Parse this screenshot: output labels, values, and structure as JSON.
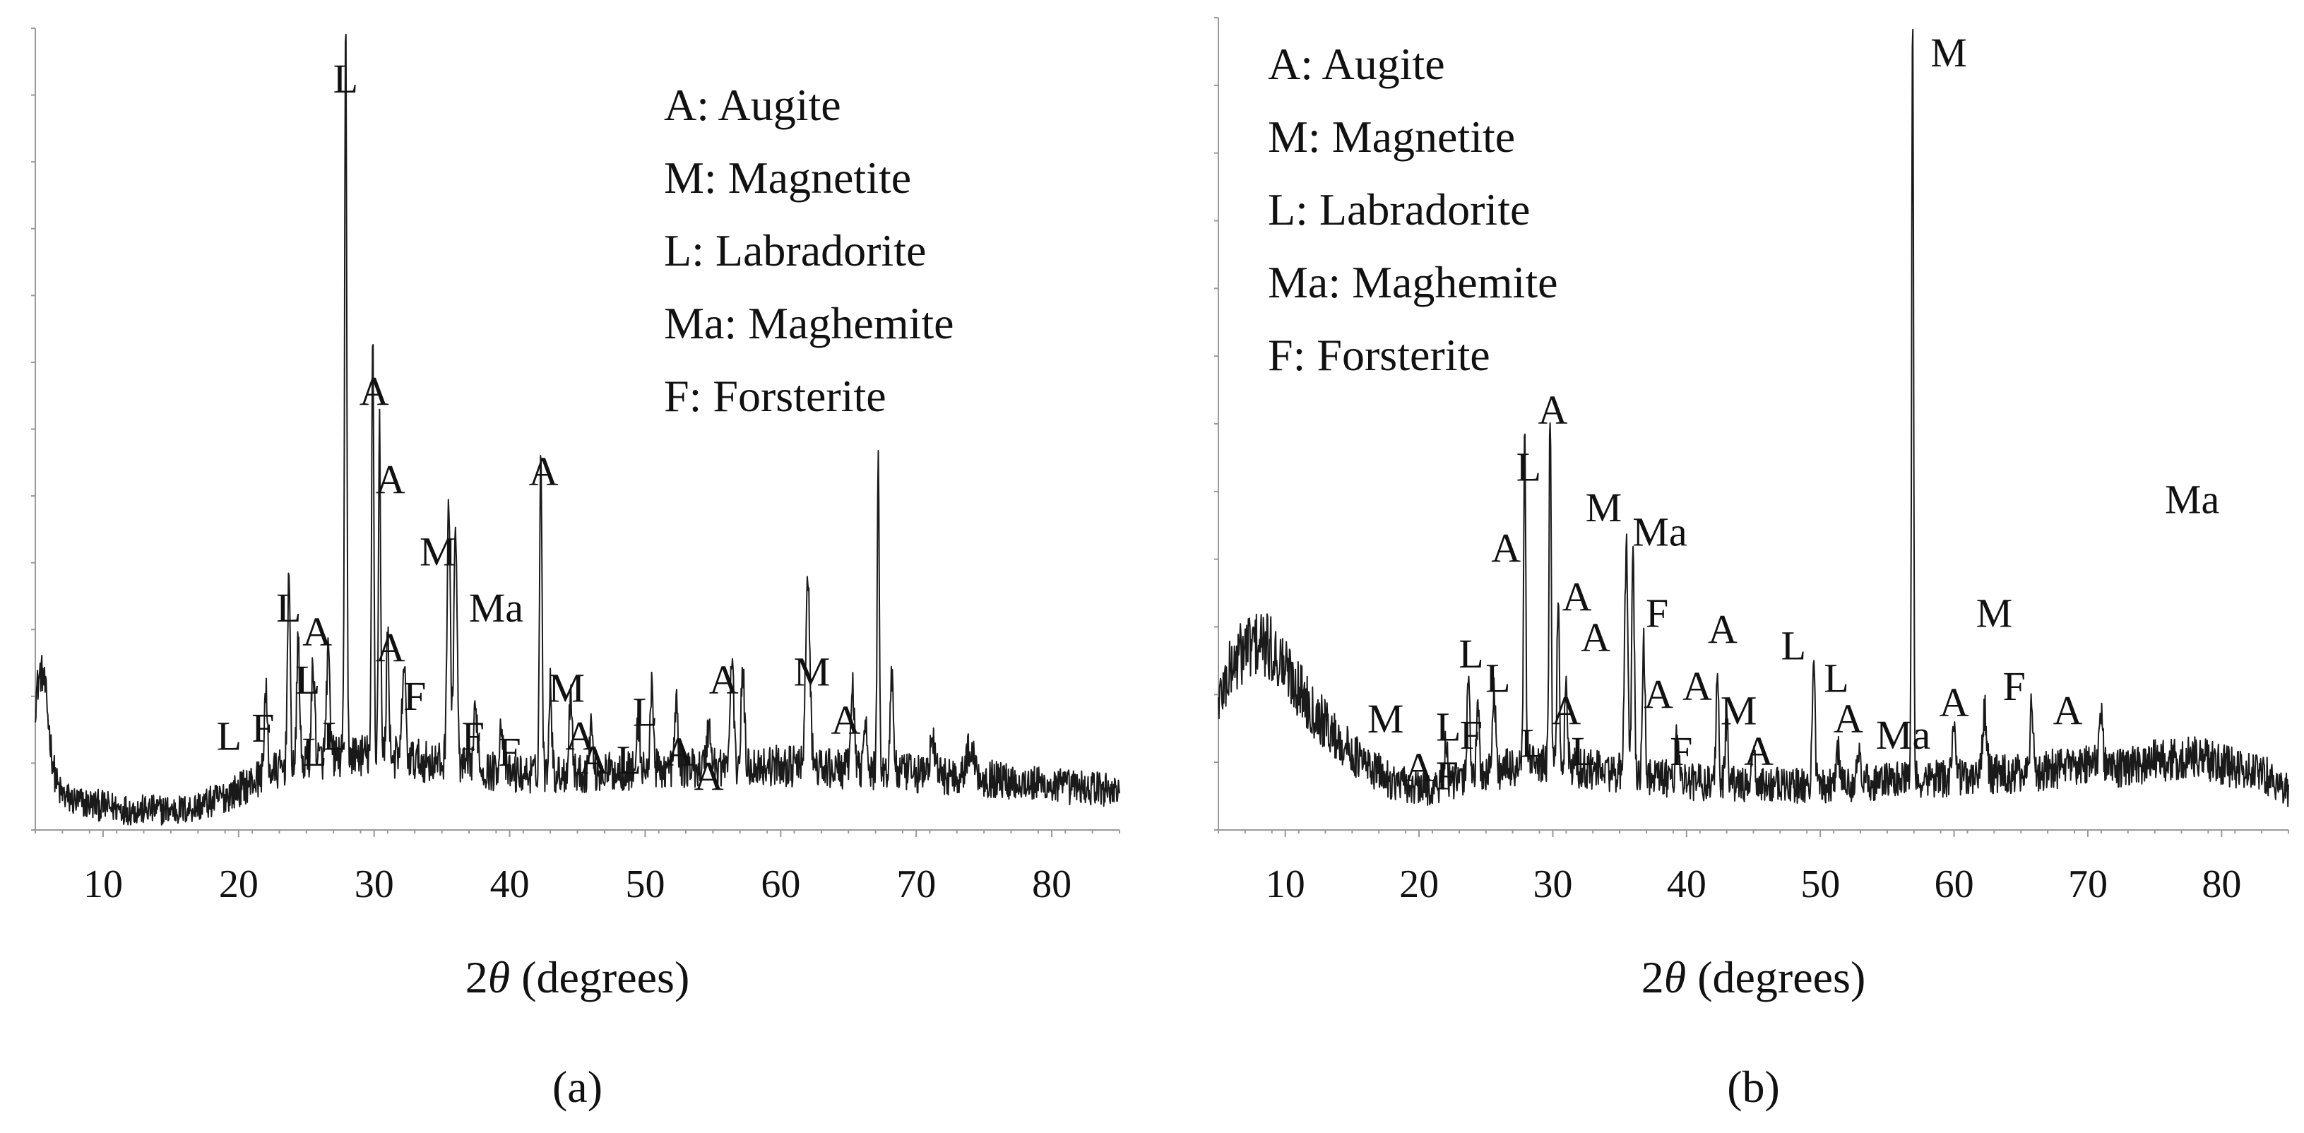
{
  "chart_data": [
    {
      "panel": "a",
      "type": "line",
      "caption": "(a)",
      "xlabel": "2θ (degrees)",
      "xlim": [
        5,
        85
      ],
      "x_ticks": [
        10,
        20,
        30,
        40,
        50,
        60,
        70,
        80
      ],
      "ylim": [
        0,
        100
      ],
      "legend": {
        "placement": "top-right",
        "entries": [
          "A: Augite",
          "M: Magnetite",
          "L: Labradorite",
          "Ma: Maghemite",
          "F: Forsterite"
        ]
      },
      "baseline": [
        [
          5,
          8
        ],
        [
          6,
          5
        ],
        [
          8,
          3.5
        ],
        [
          12,
          2.5
        ],
        [
          16,
          2.5
        ],
        [
          18,
          3.5
        ],
        [
          20,
          5
        ],
        [
          22,
          7
        ],
        [
          25,
          8.5
        ],
        [
          28,
          9.5
        ],
        [
          32,
          9
        ],
        [
          36,
          8
        ],
        [
          40,
          7
        ],
        [
          45,
          7
        ],
        [
          50,
          7.5
        ],
        [
          55,
          8
        ],
        [
          60,
          8
        ],
        [
          65,
          7.5
        ],
        [
          70,
          7
        ],
        [
          75,
          6.5
        ],
        [
          80,
          5.5
        ],
        [
          85,
          5
        ]
      ],
      "peaks": [
        {
          "x": 5.5,
          "y": 13,
          "w": 0.5
        },
        {
          "x": 22.0,
          "y": 10,
          "w": 0.12
        },
        {
          "x": 23.7,
          "y": 24,
          "w": 0.1
        },
        {
          "x": 24.4,
          "y": 16,
          "w": 0.1
        },
        {
          "x": 25.5,
          "y": 12,
          "w": 0.12
        },
        {
          "x": 26.6,
          "y": 13,
          "w": 0.12
        },
        {
          "x": 27.9,
          "y": 90,
          "w": 0.08
        },
        {
          "x": 29.9,
          "y": 52,
          "w": 0.08
        },
        {
          "x": 30.4,
          "y": 42,
          "w": 0.08
        },
        {
          "x": 31.0,
          "y": 15,
          "w": 0.1
        },
        {
          "x": 32.2,
          "y": 12,
          "w": 0.12
        },
        {
          "x": 35.5,
          "y": 33,
          "w": 0.12
        },
        {
          "x": 36.0,
          "y": 30,
          "w": 0.12
        },
        {
          "x": 37.5,
          "y": 7,
          "w": 0.15
        },
        {
          "x": 39.4,
          "y": 6,
          "w": 0.15
        },
        {
          "x": 42.3,
          "y": 40,
          "w": 0.09
        },
        {
          "x": 43.0,
          "y": 12,
          "w": 0.1
        },
        {
          "x": 44.5,
          "y": 10,
          "w": 0.12
        },
        {
          "x": 46.0,
          "y": 6,
          "w": 0.12
        },
        {
          "x": 49.5,
          "y": 6,
          "w": 0.12
        },
        {
          "x": 50.5,
          "y": 12,
          "w": 0.1
        },
        {
          "x": 52.3,
          "y": 8,
          "w": 0.12
        },
        {
          "x": 54.7,
          "y": 5,
          "w": 0.15
        },
        {
          "x": 56.4,
          "y": 14,
          "w": 0.12
        },
        {
          "x": 57.2,
          "y": 12,
          "w": 0.12
        },
        {
          "x": 62.0,
          "y": 23,
          "w": 0.16
        },
        {
          "x": 65.3,
          "y": 11,
          "w": 0.12
        },
        {
          "x": 66.2,
          "y": 7,
          "w": 0.12
        },
        {
          "x": 67.2,
          "y": 39,
          "w": 0.08
        },
        {
          "x": 68.2,
          "y": 12,
          "w": 0.12
        },
        {
          "x": 71.2,
          "y": 4,
          "w": 0.2
        },
        {
          "x": 74.0,
          "y": 3.5,
          "w": 0.3
        }
      ],
      "peak_labels": [
        {
          "text": "L",
          "x": 27.9,
          "y": 92
        },
        {
          "text": "A",
          "x": 30.0,
          "y": 53
        },
        {
          "text": "A",
          "x": 31.2,
          "y": 42
        },
        {
          "text": "L",
          "x": 23.7,
          "y": 26
        },
        {
          "text": "A",
          "x": 25.8,
          "y": 23
        },
        {
          "text": "L",
          "x": 25.1,
          "y": 17
        },
        {
          "text": "A",
          "x": 31.2,
          "y": 21
        },
        {
          "text": "F",
          "x": 33.0,
          "y": 15
        },
        {
          "text": "M",
          "x": 34.7,
          "y": 33
        },
        {
          "text": "Ma",
          "x": 39.0,
          "y": 26
        },
        {
          "text": "A",
          "x": 42.5,
          "y": 43
        },
        {
          "text": "M",
          "x": 44.2,
          "y": 16
        },
        {
          "text": "F",
          "x": 37.3,
          "y": 10
        },
        {
          "text": "F",
          "x": 40.0,
          "y": 8
        },
        {
          "text": "A",
          "x": 45.2,
          "y": 10
        },
        {
          "text": "A",
          "x": 46.2,
          "y": 7
        },
        {
          "text": "L",
          "x": 48.8,
          "y": 7
        },
        {
          "text": "L",
          "x": 50.0,
          "y": 13
        },
        {
          "text": "A",
          "x": 52.5,
          "y": 8
        },
        {
          "text": "A",
          "x": 54.7,
          "y": 5
        },
        {
          "text": "A",
          "x": 55.8,
          "y": 17
        },
        {
          "text": "M",
          "x": 62.3,
          "y": 18
        },
        {
          "text": "A",
          "x": 64.8,
          "y": 12
        },
        {
          "text": "L",
          "x": 19.3,
          "y": 10
        },
        {
          "text": "F",
          "x": 21.8,
          "y": 11
        },
        {
          "text": "L",
          "x": 27.1,
          "y": 10
        },
        {
          "text": "L",
          "x": 25.6,
          "y": 8
        }
      ]
    },
    {
      "panel": "b",
      "type": "line",
      "caption": "(b)",
      "xlabel": "2θ (degrees)",
      "xlim": [
        5,
        85
      ],
      "x_ticks": [
        10,
        20,
        30,
        40,
        50,
        60,
        70,
        80
      ],
      "ylim": [
        0,
        100
      ],
      "legend": {
        "placement": "top-left",
        "entries": [
          "A: Augite",
          "M: Magnetite",
          "L: Labradorite",
          "Ma: Maghemite",
          "F: Forsterite"
        ]
      },
      "baseline": [
        [
          5,
          16
        ],
        [
          6,
          20
        ],
        [
          7,
          22.5
        ],
        [
          8,
          23
        ],
        [
          9,
          22
        ],
        [
          10,
          20
        ],
        [
          12,
          15
        ],
        [
          14,
          11
        ],
        [
          16,
          8
        ],
        [
          18,
          6
        ],
        [
          20,
          5
        ],
        [
          22,
          5.5
        ],
        [
          25,
          7
        ],
        [
          28,
          8
        ],
        [
          30,
          8
        ],
        [
          35,
          7
        ],
        [
          40,
          6
        ],
        [
          45,
          5.5
        ],
        [
          50,
          5.5
        ],
        [
          55,
          6
        ],
        [
          60,
          6.5
        ],
        [
          65,
          7
        ],
        [
          70,
          8
        ],
        [
          72,
          7.5
        ],
        [
          75,
          8.5
        ],
        [
          78,
          9
        ],
        [
          80,
          8
        ],
        [
          83,
          7
        ],
        [
          85,
          5
        ]
      ],
      "peaks": [
        {
          "x": 22.0,
          "y": 5,
          "w": 0.12
        },
        {
          "x": 23.7,
          "y": 14,
          "w": 0.1
        },
        {
          "x": 24.4,
          "y": 8,
          "w": 0.1
        },
        {
          "x": 25.6,
          "y": 10,
          "w": 0.12
        },
        {
          "x": 27.9,
          "y": 40,
          "w": 0.08
        },
        {
          "x": 29.8,
          "y": 43,
          "w": 0.08
        },
        {
          "x": 30.4,
          "y": 22,
          "w": 0.08
        },
        {
          "x": 31.0,
          "y": 10,
          "w": 0.1
        },
        {
          "x": 35.5,
          "y": 28,
          "w": 0.12
        },
        {
          "x": 36.0,
          "y": 26,
          "w": 0.1
        },
        {
          "x": 36.8,
          "y": 16,
          "w": 0.1
        },
        {
          "x": 39.3,
          "y": 6,
          "w": 0.12
        },
        {
          "x": 42.3,
          "y": 14,
          "w": 0.1
        },
        {
          "x": 43.0,
          "y": 8,
          "w": 0.1
        },
        {
          "x": 45.0,
          "y": 4,
          "w": 0.12
        },
        {
          "x": 49.5,
          "y": 16,
          "w": 0.1
        },
        {
          "x": 51.3,
          "y": 4,
          "w": 0.15
        },
        {
          "x": 52.8,
          "y": 4,
          "w": 0.15
        },
        {
          "x": 56.9,
          "y": 96,
          "w": 0.07
        },
        {
          "x": 60.0,
          "y": 6,
          "w": 0.15
        },
        {
          "x": 62.3,
          "y": 8,
          "w": 0.15
        },
        {
          "x": 65.8,
          "y": 8,
          "w": 0.12
        },
        {
          "x": 71.0,
          "y": 7,
          "w": 0.12
        }
      ],
      "peak_labels": [
        {
          "text": "M",
          "x": 59.6,
          "y": 94
        },
        {
          "text": "Ma",
          "x": 77.8,
          "y": 39
        },
        {
          "text": "A",
          "x": 30.0,
          "y": 50
        },
        {
          "text": "L",
          "x": 28.2,
          "y": 43
        },
        {
          "text": "M",
          "x": 33.8,
          "y": 38
        },
        {
          "text": "Ma",
          "x": 38.0,
          "y": 35
        },
        {
          "text": "A",
          "x": 26.5,
          "y": 33
        },
        {
          "text": "A",
          "x": 31.8,
          "y": 27
        },
        {
          "text": "F",
          "x": 37.8,
          "y": 25
        },
        {
          "text": "A",
          "x": 33.2,
          "y": 22
        },
        {
          "text": "A",
          "x": 42.7,
          "y": 23
        },
        {
          "text": "L",
          "x": 48.0,
          "y": 21
        },
        {
          "text": "M",
          "x": 63.0,
          "y": 25
        },
        {
          "text": "L",
          "x": 23.9,
          "y": 20
        },
        {
          "text": "L",
          "x": 25.9,
          "y": 17
        },
        {
          "text": "L",
          "x": 51.2,
          "y": 17
        },
        {
          "text": "A",
          "x": 37.9,
          "y": 15
        },
        {
          "text": "A",
          "x": 40.8,
          "y": 16
        },
        {
          "text": "F",
          "x": 64.5,
          "y": 16
        },
        {
          "text": "A",
          "x": 60.0,
          "y": 14
        },
        {
          "text": "A",
          "x": 68.5,
          "y": 13
        },
        {
          "text": "M",
          "x": 17.5,
          "y": 12
        },
        {
          "text": "L",
          "x": 22.2,
          "y": 11
        },
        {
          "text": "F",
          "x": 23.9,
          "y": 10
        },
        {
          "text": "A",
          "x": 31.0,
          "y": 13
        },
        {
          "text": "L",
          "x": 28.5,
          "y": 9
        },
        {
          "text": "L",
          "x": 32.3,
          "y": 8
        },
        {
          "text": "M",
          "x": 43.9,
          "y": 13
        },
        {
          "text": "A",
          "x": 52.1,
          "y": 12
        },
        {
          "text": "F",
          "x": 39.6,
          "y": 8
        },
        {
          "text": "A",
          "x": 45.4,
          "y": 8
        },
        {
          "text": "Ma",
          "x": 56.2,
          "y": 10
        },
        {
          "text": "A",
          "x": 20.0,
          "y": 6
        },
        {
          "text": "F",
          "x": 22.1,
          "y": 5
        }
      ]
    }
  ]
}
